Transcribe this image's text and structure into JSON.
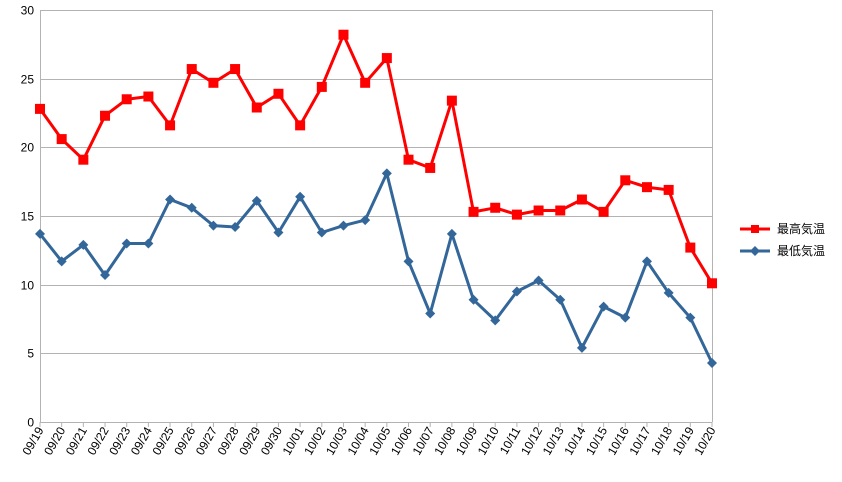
{
  "chart_data": {
    "type": "line",
    "title": "",
    "xlabel": "",
    "ylabel": "",
    "ylim": [
      0,
      30
    ],
    "yticks": [
      0,
      5,
      10,
      15,
      20,
      25,
      30
    ],
    "grid": "horizontal",
    "legend_position": "right",
    "categories": [
      "09/19",
      "09/20",
      "09/21",
      "09/22",
      "09/23",
      "09/24",
      "09/25",
      "09/26",
      "09/27",
      "09/28",
      "09/29",
      "09/30",
      "10/01",
      "10/02",
      "10/03",
      "10/04",
      "10/05",
      "10/06",
      "10/07",
      "10/08",
      "10/09",
      "10/10",
      "10/11",
      "10/12",
      "10/13",
      "10/14",
      "10/15",
      "10/16",
      "10/17",
      "10/18",
      "10/19",
      "10/20"
    ],
    "series": [
      {
        "name": "最高気温",
        "color": "#ff0000",
        "marker": "square",
        "values": [
          22.8,
          20.6,
          19.1,
          22.3,
          23.5,
          23.7,
          21.6,
          25.7,
          24.7,
          25.7,
          22.9,
          23.9,
          21.6,
          24.4,
          28.2,
          24.7,
          26.5,
          19.1,
          18.5,
          23.4,
          15.3,
          15.6,
          15.1,
          15.4,
          15.4,
          16.2,
          15.3,
          17.6,
          17.1,
          16.9,
          12.7,
          10.1
        ]
      },
      {
        "name": "最低気温",
        "color": "#336699",
        "marker": "diamond",
        "values": [
          13.7,
          11.7,
          12.9,
          10.7,
          13.0,
          13.0,
          16.2,
          15.6,
          14.3,
          14.2,
          16.1,
          13.8,
          16.4,
          13.8,
          14.3,
          14.7,
          18.1,
          11.7,
          7.9,
          13.7,
          8.9,
          7.4,
          9.5,
          10.3,
          8.9,
          5.4,
          8.4,
          7.6,
          11.7,
          9.4,
          7.6,
          4.3
        ]
      }
    ]
  }
}
